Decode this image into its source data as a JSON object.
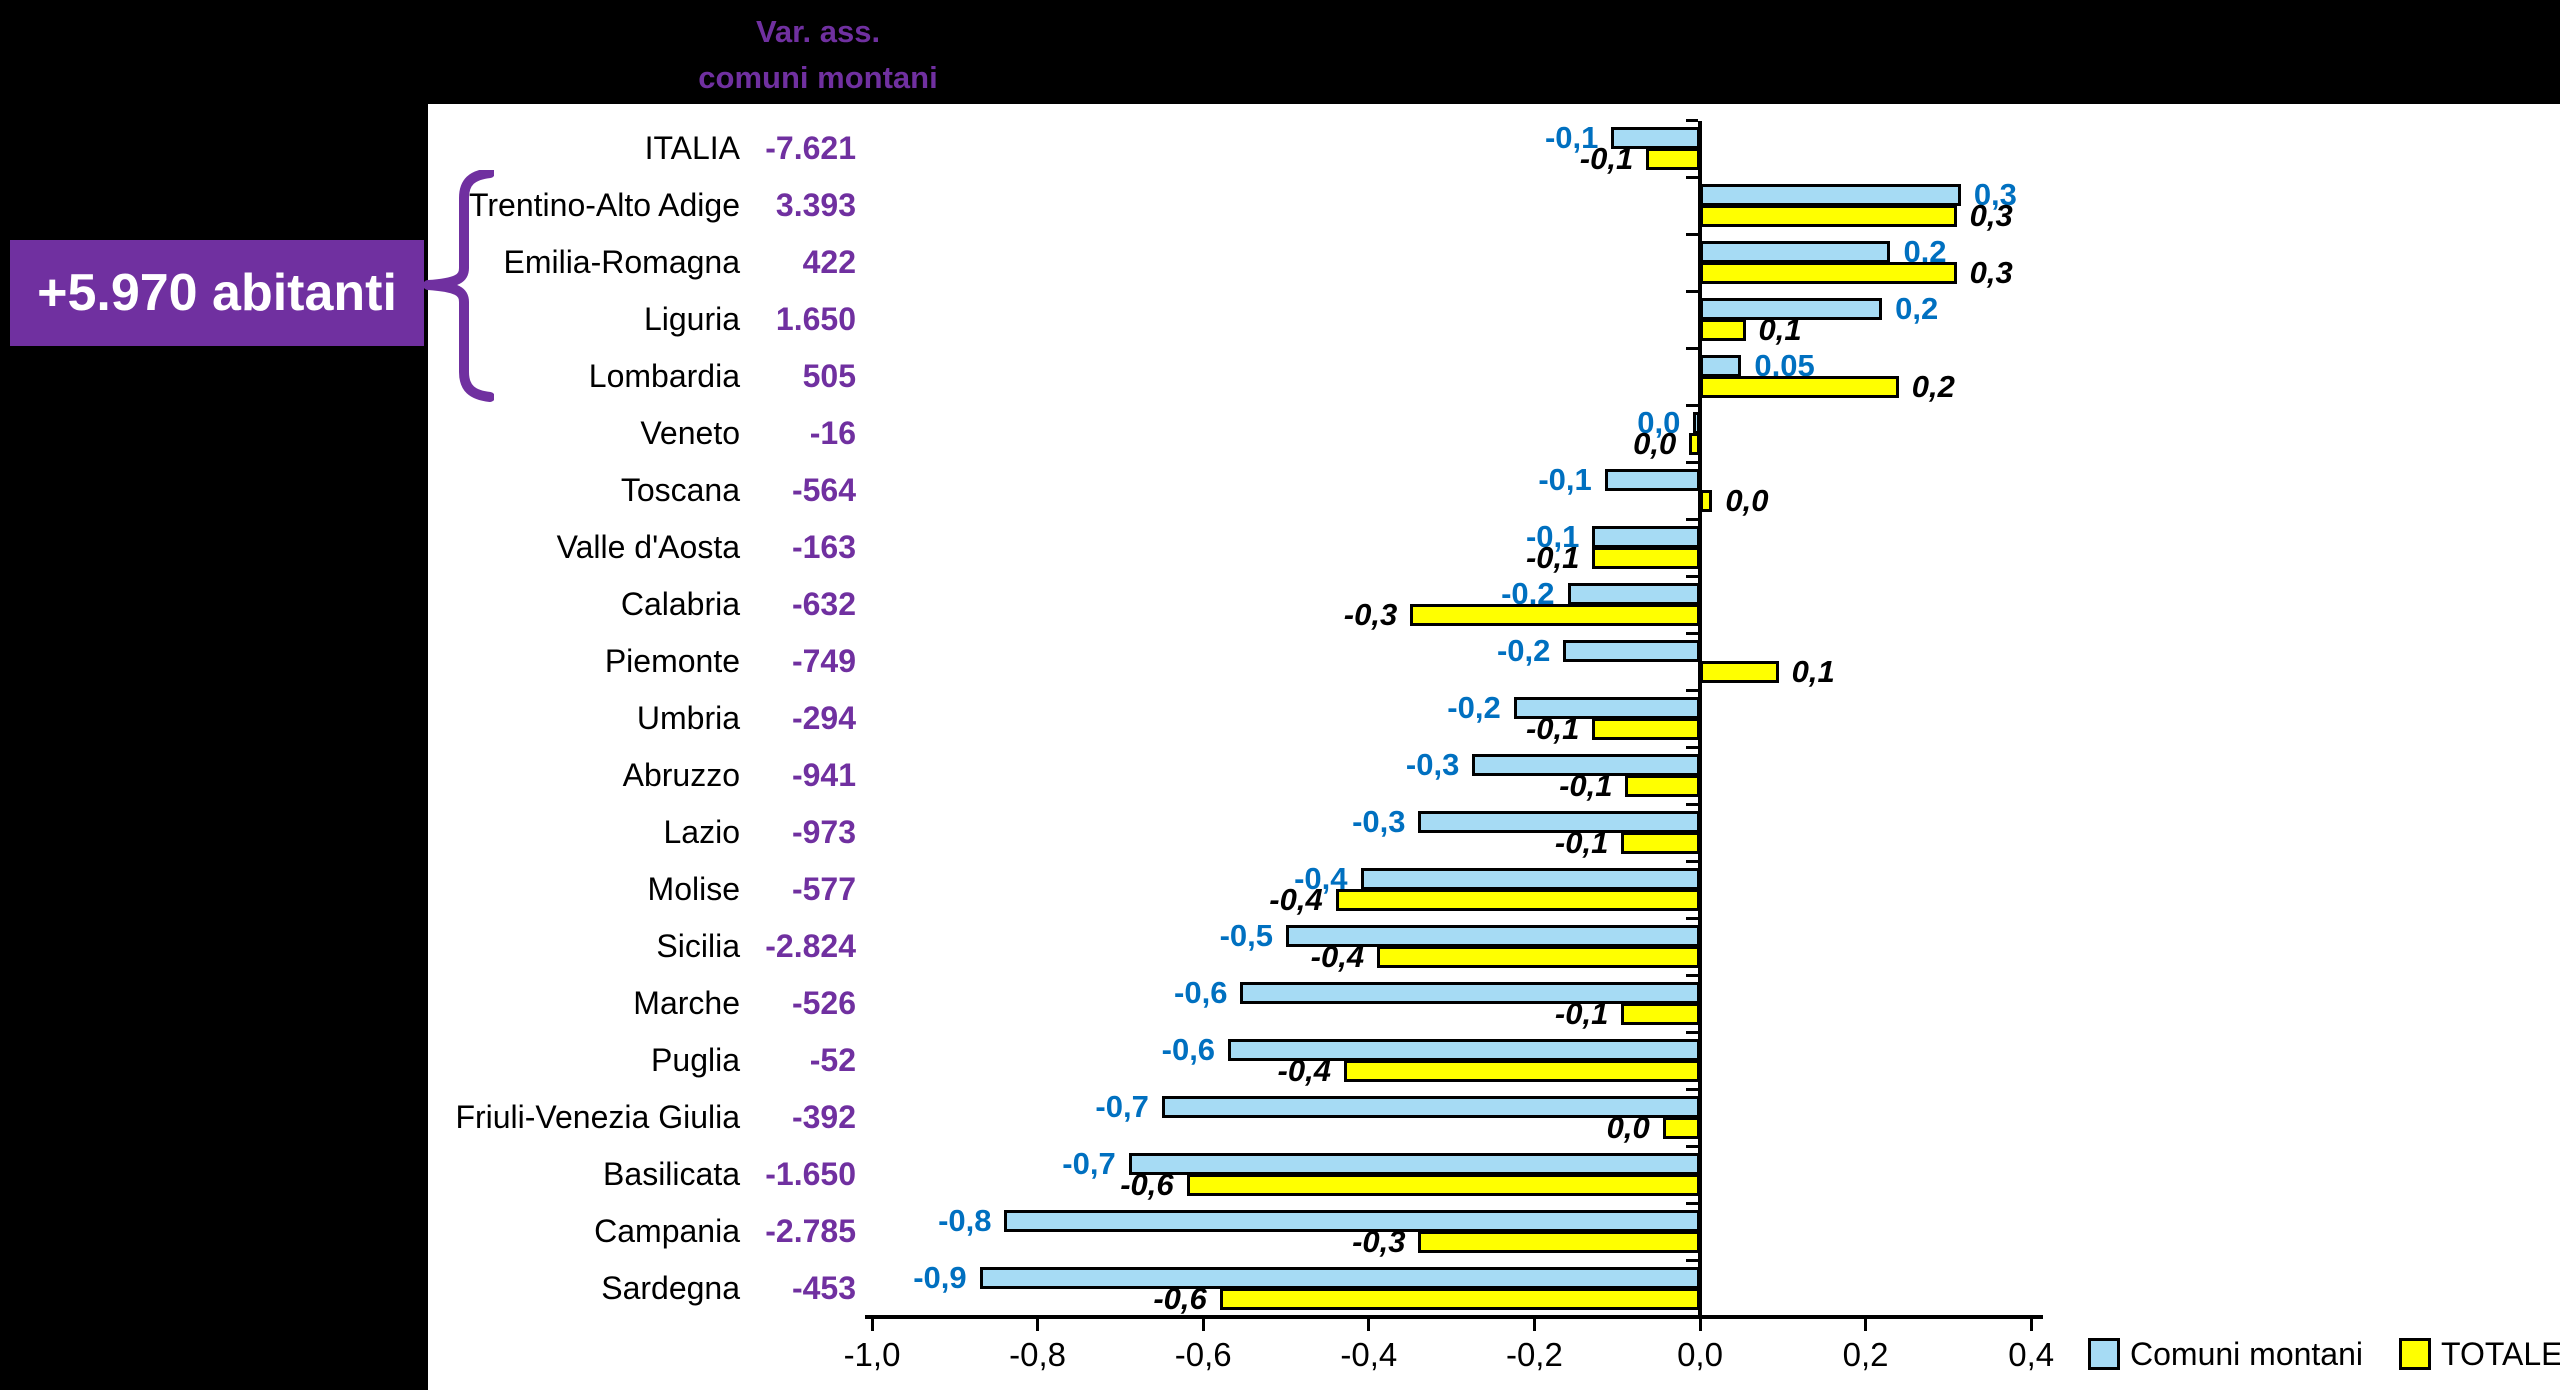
{
  "header": {
    "line1": "Var. ass.",
    "line2": "comuni montani"
  },
  "annotation": {
    "box_label": "+5.970 abitanti"
  },
  "colors": {
    "background": "#000000",
    "panel": "#FFFFFF",
    "purple": "#7030A0",
    "bar_blue": "#A6DBF4",
    "bar_yellow": "#FFFF00",
    "label_blue": "#0070C0",
    "label_black": "#000000"
  },
  "legend": [
    {
      "label": "Comuni montani",
      "color": "#A6DBF4"
    },
    {
      "label": "TOTALE",
      "color": "#FFFF00"
    }
  ],
  "chart_data": {
    "type": "bar",
    "orientation": "horizontal",
    "title": "Var. ass. comuni montani",
    "series_names": [
      "Comuni montani",
      "TOTALE"
    ],
    "x_axis": {
      "range": [
        -1.0,
        0.4
      ],
      "grid": false,
      "ticks": [
        {
          "value": -1.0,
          "label": "-1,0"
        },
        {
          "value": -0.8,
          "label": "-0,8"
        },
        {
          "value": -0.6,
          "label": "-0,6"
        },
        {
          "value": -0.4,
          "label": "-0,4"
        },
        {
          "value": -0.2,
          "label": "-0,2"
        },
        {
          "value": 0.0,
          "label": "0,0"
        },
        {
          "value": 0.2,
          "label": "0,2"
        },
        {
          "value": 0.4,
          "label": "0,4"
        }
      ]
    },
    "rows": [
      {
        "region": "ITALIA",
        "var_ass": "-7.621",
        "comuni_montani": {
          "value": -0.107,
          "label": "-0,1"
        },
        "totale": {
          "value": -0.065,
          "label": "-0,1"
        }
      },
      {
        "region": "Trentino-Alto Adige",
        "var_ass": "3.393",
        "comuni_montani": {
          "value": 0.315,
          "label": "0,3"
        },
        "totale": {
          "value": 0.31,
          "label": "0,3"
        }
      },
      {
        "region": "Emilia-Romagna",
        "var_ass": "422",
        "comuni_montani": {
          "value": 0.23,
          "label": "0,2"
        },
        "totale": {
          "value": 0.31,
          "label": "0,3"
        }
      },
      {
        "region": "Liguria",
        "var_ass": "1.650",
        "comuni_montani": {
          "value": 0.22,
          "label": "0,2"
        },
        "totale": {
          "value": 0.055,
          "label": "0,1"
        }
      },
      {
        "region": "Lombardia",
        "var_ass": "505",
        "comuni_montani": {
          "value": 0.05,
          "label": "0,05"
        },
        "totale": {
          "value": 0.24,
          "label": "0,2"
        }
      },
      {
        "region": "Veneto",
        "var_ass": "-16",
        "comuni_montani": {
          "value": -0.008,
          "label": "0,0"
        },
        "totale": {
          "value": -0.013,
          "label": "0,0"
        }
      },
      {
        "region": "Toscana",
        "var_ass": "-564",
        "comuni_montani": {
          "value": -0.115,
          "label": "-0,1"
        },
        "totale": {
          "value": 0.015,
          "label": "0,0"
        }
      },
      {
        "region": "Valle d'Aosta",
        "var_ass": "-163",
        "comuni_montani": {
          "value": -0.13,
          "label": "-0,1"
        },
        "totale": {
          "value": -0.13,
          "label": "-0,1"
        }
      },
      {
        "region": "Calabria",
        "var_ass": "-632",
        "comuni_montani": {
          "value": -0.16,
          "label": "-0,2"
        },
        "totale": {
          "value": -0.35,
          "label": "-0,3"
        }
      },
      {
        "region": "Piemonte",
        "var_ass": "-749",
        "comuni_montani": {
          "value": -0.165,
          "label": "-0,2"
        },
        "totale": {
          "value": 0.095,
          "label": "0,1"
        }
      },
      {
        "region": "Umbria",
        "var_ass": "-294",
        "comuni_montani": {
          "value": -0.225,
          "label": "-0,2"
        },
        "totale": {
          "value": -0.13,
          "label": "-0,1"
        }
      },
      {
        "region": "Abruzzo",
        "var_ass": "-941",
        "comuni_montani": {
          "value": -0.275,
          "label": "-0,3"
        },
        "totale": {
          "value": -0.09,
          "label": "-0,1"
        }
      },
      {
        "region": "Lazio",
        "var_ass": "-973",
        "comuni_montani": {
          "value": -0.34,
          "label": "-0,3"
        },
        "totale": {
          "value": -0.095,
          "label": "-0,1"
        }
      },
      {
        "region": "Molise",
        "var_ass": "-577",
        "comuni_montani": {
          "value": -0.41,
          "label": "-0,4"
        },
        "totale": {
          "value": -0.44,
          "label": "-0,4"
        }
      },
      {
        "region": "Sicilia",
        "var_ass": "-2.824",
        "comuni_montani": {
          "value": -0.5,
          "label": "-0,5"
        },
        "totale": {
          "value": -0.39,
          "label": "-0,4"
        }
      },
      {
        "region": "Marche",
        "var_ass": "-526",
        "comuni_montani": {
          "value": -0.555,
          "label": "-0,6"
        },
        "totale": {
          "value": -0.095,
          "label": "-0,1"
        }
      },
      {
        "region": "Puglia",
        "var_ass": "-52",
        "comuni_montani": {
          "value": -0.57,
          "label": "-0,6"
        },
        "totale": {
          "value": -0.43,
          "label": "-0,4"
        }
      },
      {
        "region": "Friuli-Venezia Giulia",
        "var_ass": "-392",
        "comuni_montani": {
          "value": -0.65,
          "label": "-0,7"
        },
        "totale": {
          "value": -0.045,
          "label": "0,0"
        }
      },
      {
        "region": "Basilicata",
        "var_ass": "-1.650",
        "comuni_montani": {
          "value": -0.69,
          "label": "-0,7"
        },
        "totale": {
          "value": -0.62,
          "label": "-0,6"
        }
      },
      {
        "region": "Campania",
        "var_ass": "-2.785",
        "comuni_montani": {
          "value": -0.84,
          "label": "-0,8"
        },
        "totale": {
          "value": -0.34,
          "label": "-0,3"
        }
      },
      {
        "region": "Sardegna",
        "var_ass": "-453",
        "comuni_montani": {
          "value": -0.87,
          "label": "-0,9"
        },
        "totale": {
          "value": -0.58,
          "label": "-0,6"
        }
      }
    ],
    "legend_position": "bottom-right",
    "braced_group": [
      "Trentino-Alto Adige",
      "Emilia-Romagna",
      "Liguria",
      "Lombardia"
    ]
  }
}
